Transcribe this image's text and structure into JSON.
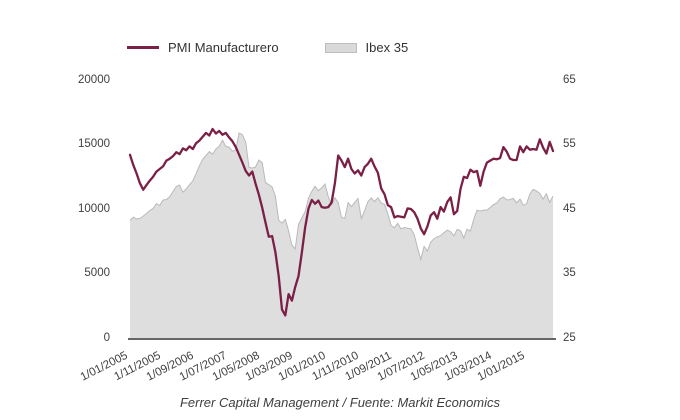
{
  "footer": "Ferrer Capital Management / Fuente: Markit Economics",
  "colors": {
    "pmi_line": "#7a1f45",
    "ibex_fill": "#dedede",
    "ibex_edge": "#b9b9b9",
    "axis_line": "#666666",
    "tick_text": "#404040",
    "legend_text": "#333333"
  },
  "chart_data": {
    "type": "line",
    "title": "",
    "x_start": "2005-01",
    "x_frequency": "monthly",
    "x_tick_labels": [
      "1/01/2005",
      "1/11/2005",
      "1/09/2006",
      "1/07/2007",
      "1/05/2008",
      "1/03/2009",
      "1/01/2010",
      "1/11/2010",
      "1/09/2011",
      "1/07/2012",
      "1/05/2013",
      "1/03/2014",
      "1/01/2015"
    ],
    "x_tick_month_step": 10,
    "grid": false,
    "legend_position": "top",
    "left_axis": {
      "label": "",
      "ticks": [
        0,
        5000,
        10000,
        15000,
        20000
      ],
      "range": [
        0,
        20000
      ],
      "applies_to": "Ibex 35"
    },
    "right_axis": {
      "label": "",
      "ticks": [
        25,
        35,
        45,
        55,
        65
      ],
      "range": [
        25,
        65
      ],
      "applies_to": "PMI Manufacturero"
    },
    "series": [
      {
        "name": "PMI Manufacturero",
        "type": "line",
        "axis": "right",
        "color": "#7a1f45",
        "values": [
          53.4,
          51.8,
          50.5,
          49.0,
          48.0,
          48.7,
          49.4,
          50.0,
          50.8,
          51.2,
          51.6,
          52.5,
          52.8,
          53.2,
          53.8,
          53.5,
          54.4,
          54.1,
          54.7,
          54.3,
          55.2,
          55.6,
          56.2,
          56.8,
          56.4,
          57.4,
          56.7,
          57.1,
          56.5,
          56.8,
          56.1,
          55.5,
          54.6,
          53.4,
          52.2,
          50.9,
          50.2,
          50.8,
          48.9,
          47.2,
          45.2,
          42.9,
          40.7,
          40.8,
          38.3,
          34.6,
          29.4,
          28.5,
          31.8,
          30.8,
          32.9,
          34.6,
          38.2,
          42.1,
          45.1,
          46.4,
          45.8,
          46.3,
          45.3,
          45.2,
          45.3,
          46.0,
          49.0,
          53.3,
          52.5,
          51.5,
          52.8,
          51.2,
          50.5,
          51.0,
          50.2,
          51.5,
          52.0,
          52.8,
          51.6,
          50.6,
          48.2,
          47.3,
          45.6,
          45.3,
          43.7,
          43.9,
          43.8,
          43.7,
          45.1,
          45.0,
          44.5,
          43.5,
          42.0,
          41.1,
          42.3,
          44.0,
          44.5,
          43.5,
          45.3,
          44.6,
          46.1,
          46.8,
          44.2,
          44.7,
          48.1,
          50.0,
          49.8,
          51.1,
          50.7,
          50.9,
          48.6,
          50.8,
          52.2,
          52.5,
          52.8,
          52.7,
          52.9,
          54.6,
          53.9,
          52.8,
          52.6,
          52.6,
          54.7,
          53.8,
          54.7,
          54.2,
          54.3,
          54.2,
          55.8,
          54.5,
          53.6,
          55.4,
          54.0
        ]
      },
      {
        "name": "Ibex 35",
        "type": "area",
        "axis": "left",
        "color": "#dedede",
        "edge_color": "#b9b9b9",
        "values": [
          9100,
          9370,
          9230,
          9260,
          9450,
          9650,
          9880,
          10050,
          10420,
          10280,
          10690,
          10734,
          10950,
          11350,
          11750,
          11850,
          11300,
          11550,
          11880,
          12175,
          12735,
          13350,
          13850,
          14147,
          14450,
          14250,
          14650,
          14850,
          15330,
          14850,
          14800,
          14480,
          14580,
          15890,
          15760,
          15182,
          13230,
          13170,
          13270,
          13798,
          13600,
          12046,
          11881,
          11707,
          10988,
          9116,
          8910,
          9195,
          8300,
          7200,
          6900,
          8800,
          9300,
          9787,
          10855,
          11365,
          11756,
          11414,
          11644,
          11940,
          10947,
          10333,
          10871,
          10492,
          9359,
          9263,
          10499,
          10187,
          10514,
          10812,
          9267,
          9859,
          10571,
          10850,
          10576,
          10879,
          10476,
          10359,
          9630,
          8718,
          8546,
          8895,
          8449,
          8566,
          8509,
          8465,
          8008,
          7011,
          6090,
          7102,
          6738,
          7421,
          7708,
          7843,
          7934,
          8167,
          8362,
          8230,
          7920,
          8419,
          8320,
          7763,
          8434,
          8290,
          9186,
          9907,
          9838,
          9916,
          9920,
          10114,
          10340,
          10459,
          10798,
          10923,
          10707,
          10728,
          10825,
          10477,
          10770,
          10279,
          10403,
          11178,
          11521,
          11385,
          11217,
          10769,
          11180,
          10500,
          11000
        ]
      }
    ]
  }
}
